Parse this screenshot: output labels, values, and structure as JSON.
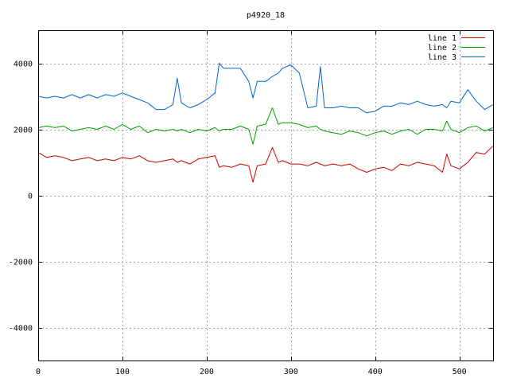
{
  "chart_data": {
    "type": "line",
    "title": "p4920_18",
    "xlabel": "",
    "ylabel": "",
    "xlim": [
      0,
      540
    ],
    "ylim": [
      -5000,
      5000
    ],
    "xticks": [
      0,
      100,
      200,
      300,
      400,
      500
    ],
    "yticks": [
      -4000,
      -2000,
      0,
      2000,
      4000
    ],
    "grid": true,
    "legend_position": "top-right",
    "x": [
      0,
      10,
      20,
      30,
      40,
      50,
      60,
      70,
      80,
      90,
      100,
      110,
      120,
      130,
      140,
      150,
      160,
      165,
      170,
      180,
      190,
      200,
      210,
      215,
      220,
      230,
      240,
      250,
      255,
      260,
      270,
      278,
      285,
      290,
      300,
      310,
      320,
      330,
      335,
      340,
      350,
      360,
      370,
      380,
      390,
      400,
      410,
      420,
      430,
      440,
      450,
      460,
      470,
      480,
      485,
      490,
      500,
      510,
      520,
      530,
      540
    ],
    "series": [
      {
        "name": "line 1",
        "color": "#cc0000",
        "values": [
          1300,
          1150,
          1200,
          1150,
          1050,
          1100,
          1150,
          1050,
          1100,
          1050,
          1150,
          1100,
          1200,
          1050,
          1000,
          1050,
          1100,
          1000,
          1050,
          950,
          1100,
          1150,
          1200,
          850,
          900,
          850,
          950,
          900,
          400,
          900,
          950,
          1450,
          1000,
          1050,
          950,
          950,
          900,
          1000,
          950,
          900,
          950,
          900,
          950,
          800,
          700,
          800,
          850,
          750,
          950,
          900,
          1000,
          950,
          900,
          700,
          1250,
          900,
          800,
          1000,
          1300,
          1250,
          1500
        ]
      },
      {
        "name": "line 2",
        "color": "#00a000",
        "values": [
          2050,
          2100,
          2050,
          2100,
          1950,
          2000,
          2050,
          2000,
          2100,
          2000,
          2150,
          2000,
          2100,
          1900,
          2000,
          1950,
          2000,
          1950,
          2000,
          1900,
          2000,
          1950,
          2050,
          1950,
          2000,
          2000,
          2100,
          2000,
          1550,
          2100,
          2150,
          2650,
          2150,
          2200,
          2200,
          2150,
          2050,
          2100,
          2000,
          1950,
          1900,
          1850,
          1950,
          1900,
          1800,
          1900,
          1950,
          1850,
          1950,
          2000,
          1850,
          2000,
          2000,
          1950,
          2250,
          2000,
          1900,
          2050,
          2100,
          1950,
          2050
        ]
      },
      {
        "name": "line 3",
        "color": "#0066cc",
        "values": [
          3000,
          2950,
          3000,
          2950,
          3050,
          2950,
          3050,
          2950,
          3050,
          3000,
          3100,
          3000,
          2900,
          2800,
          2600,
          2600,
          2750,
          3550,
          2800,
          2650,
          2750,
          2900,
          3100,
          4000,
          3850,
          3850,
          3850,
          3450,
          2950,
          3450,
          3450,
          3600,
          3700,
          3850,
          3950,
          3700,
          2650,
          2700,
          3900,
          2650,
          2650,
          2700,
          2650,
          2650,
          2500,
          2550,
          2700,
          2700,
          2800,
          2750,
          2850,
          2750,
          2700,
          2750,
          2650,
          2850,
          2800,
          3200,
          2850,
          2600,
          2750
        ]
      }
    ]
  }
}
